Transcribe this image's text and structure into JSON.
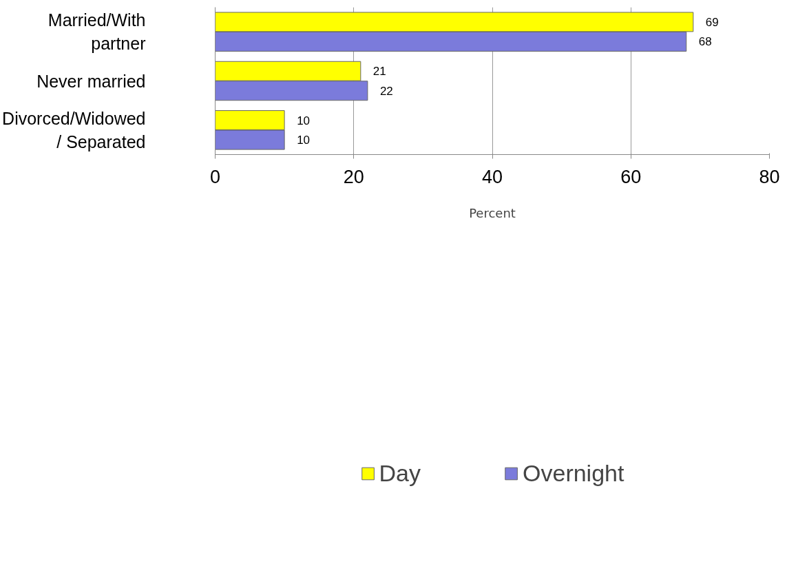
{
  "chart_data": {
    "type": "bar",
    "orientation": "horizontal",
    "xlabel": "Percent",
    "categories": [
      "Married/With partner",
      "Never married",
      "Divorced/Widowed / Separated"
    ],
    "series": [
      {
        "name": "Day",
        "color": "#ffff00",
        "values": [
          69,
          21,
          10
        ]
      },
      {
        "name": "Overnight",
        "color": "#7b7bdb",
        "values": [
          68,
          22,
          10
        ]
      }
    ],
    "xlim": [
      0,
      80
    ],
    "xticks": [
      0,
      20,
      40,
      60,
      80
    ],
    "grid": "x",
    "legend": "bottom",
    "data_labels": true
  }
}
